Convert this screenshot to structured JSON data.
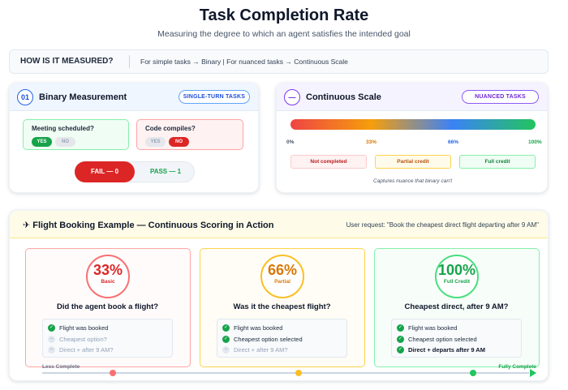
{
  "header": {
    "title": "Task Completion Rate",
    "subtitle": "Measuring the degree to which an agent satisfies the intended goal"
  },
  "measured": {
    "label": "HOW IS IT MEASURED?",
    "text": "For simple tasks → Binary | For nuanced tasks → Continuous Scale"
  },
  "binary": {
    "number": "01",
    "title": "Binary Measurement",
    "tag": "SINGLE-TURN TASKS",
    "examples": [
      {
        "question": "Meeting scheduled?",
        "yes": "YES",
        "no": "NO"
      },
      {
        "question": "Code compiles?",
        "yes": "YES",
        "no": "NO"
      }
    ],
    "fail_label": "FAIL — 0",
    "pass_label": "PASS — 1"
  },
  "continuous": {
    "number": "—",
    "title": "Continuous Scale",
    "tag": "NUANCED TASKS",
    "ticks": [
      "0%",
      "33%",
      "66%",
      "100%"
    ],
    "bands": [
      "Not completed",
      "Partial credit",
      "Full credit"
    ],
    "caption": "Captures nuance that binary can't"
  },
  "flight": {
    "title": "✈ Flight Booking Example — Continuous Scoring in Action",
    "request": "User request: \"Book the cheapest direct flight departing after 9 AM\"",
    "cards": [
      {
        "percent": "33%",
        "level": "Basic",
        "question": "Did the agent book a flight?",
        "items": [
          "Flight was booked",
          "Cheapest option?",
          "Direct + after 9 AM?"
        ]
      },
      {
        "percent": "66%",
        "level": "Partial",
        "question": "Was it the cheapest flight?",
        "items": [
          "Flight was booked",
          "Cheapest option selected",
          "Direct + after 9 AM?"
        ]
      },
      {
        "percent": "100%",
        "level": "Full Credit",
        "question": "Cheapest direct, after 9 AM?",
        "items": [
          "Flight was booked",
          "Cheapest option selected",
          "Direct + departs after 9 AM"
        ]
      }
    ],
    "timeline_start": "Less Complete",
    "timeline_end": "Fully Complete"
  },
  "icons": {
    "check": "check-icon",
    "dash": "dash-icon",
    "plane": "plane-icon"
  },
  "colors": {
    "red": "#dc2626",
    "amber": "#d97706",
    "green": "#16a34a",
    "blue": "#2563eb",
    "purple": "#7c3aed"
  }
}
